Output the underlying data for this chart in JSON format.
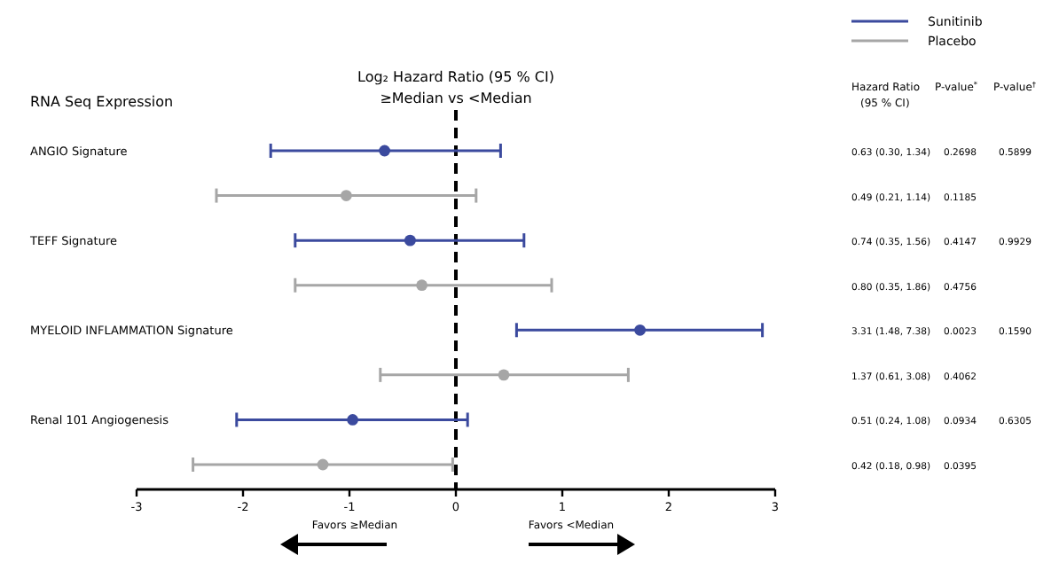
{
  "chart_data": {
    "type": "scatter",
    "orientation": "horizontal",
    "title": "Log₂ Hazard Ratio (95 % CI)",
    "subtitle": "≥Median vs <Median",
    "ylabel": "RNA Seq Expression",
    "categories": [
      "ANGIO Signature",
      null,
      "TEFF Signature",
      null,
      "MYELOID INFLAMMATION Signature",
      null,
      "Renal 101 Angiogenesis",
      null
    ],
    "series": [
      {
        "name": "Sunitinib",
        "color": "#3b4a9e",
        "values": [
          -0.67,
          null,
          -0.43,
          null,
          1.73,
          null,
          -0.97,
          null
        ],
        "errors": [
          [
            -1.74,
            0.42
          ],
          null,
          [
            -1.51,
            0.64
          ],
          null,
          [
            0.57,
            2.88
          ],
          null,
          [
            -2.06,
            0.11
          ],
          null
        ]
      },
      {
        "name": "Placebo",
        "color": "#a6a6a6",
        "values": [
          null,
          -1.03,
          null,
          -0.32,
          null,
          0.45,
          null,
          -1.25
        ],
        "errors": [
          null,
          [
            -2.25,
            0.19
          ],
          null,
          [
            -1.51,
            0.9
          ],
          null,
          [
            -0.71,
            1.62
          ],
          null,
          [
            -2.47,
            -0.03
          ]
        ]
      }
    ],
    "xlim": [
      -3,
      3
    ],
    "xticks": [
      -3,
      -2,
      -1,
      0,
      1,
      2,
      3
    ],
    "ref_lines": [
      {
        "axis": "x",
        "value": 0,
        "line_style": "dashed",
        "color": "#000000"
      }
    ],
    "annotations": [
      "Hazard Ratio\n(95 % CI)",
      "P-value$^{*}$",
      "P-value$^{†}$",
      "0.63 (0.30, 1.34)",
      "0.2698",
      "0.5899",
      "0.49 (0.21, 1.14)",
      "0.1185",
      "0.74 (0.35, 1.56)",
      "0.4147",
      "0.9929",
      "0.80 (0.35, 1.86)",
      "0.4756",
      "3.31 (1.48, 7.38)",
      "0.0023",
      "0.1590",
      "1.37 (0.61, 3.08)",
      "0.4062",
      "0.51 (0.24, 1.08)",
      "0.0934",
      "0.6305",
      "0.42 (0.18, 0.98)",
      "0.0395",
      "Favors ≥Median",
      "Favors <Median"
    ],
    "marker": "circle",
    "legend": "top right",
    "grid": false
  }
}
